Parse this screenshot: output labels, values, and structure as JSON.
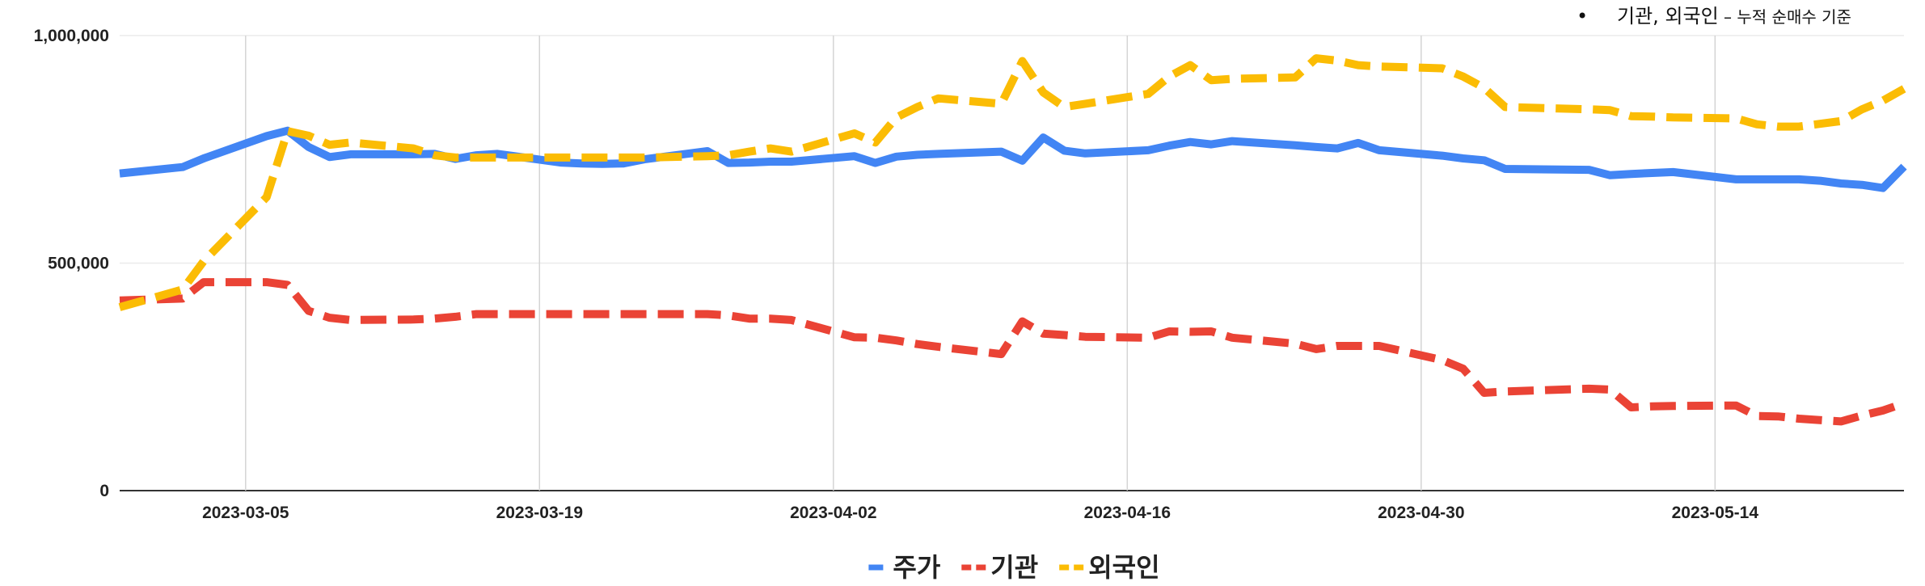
{
  "annotation": {
    "bullet": "•",
    "main": "기관, 외국인",
    "rest": " – 누적 순매수 기준"
  },
  "chart_data": {
    "type": "line",
    "title": "",
    "xlabel": "",
    "ylabel": "",
    "ylim": [
      0,
      1000000
    ],
    "xlim": [
      "2023-02-27",
      "2023-05-23"
    ],
    "y_ticks": [
      0,
      500000,
      1000000
    ],
    "y_tick_labels": [
      "0",
      "500,000",
      "1,000,000"
    ],
    "x_ticks": [
      "2023-03-05",
      "2023-03-19",
      "2023-04-02",
      "2023-04-16",
      "2023-04-30",
      "2023-05-14"
    ],
    "grid": true,
    "legend_position": "bottom",
    "series": [
      {
        "name": "주가",
        "color": "#4285F4",
        "style": "solid",
        "points": [
          [
            "2023-02-27",
            697000
          ],
          [
            "2023-03-02",
            711000
          ],
          [
            "2023-03-03",
            730000
          ],
          [
            "2023-03-06",
            779000
          ],
          [
            "2023-03-07",
            791000
          ],
          [
            "2023-03-08",
            755000
          ],
          [
            "2023-03-09",
            733000
          ],
          [
            "2023-03-10",
            739000
          ],
          [
            "2023-03-13",
            739000
          ],
          [
            "2023-03-14",
            740000
          ],
          [
            "2023-03-15",
            729000
          ],
          [
            "2023-03-16",
            737000
          ],
          [
            "2023-03-17",
            740000
          ],
          [
            "2023-03-20",
            721000
          ],
          [
            "2023-03-21",
            719000
          ],
          [
            "2023-03-22",
            718000
          ],
          [
            "2023-03-23",
            719000
          ],
          [
            "2023-03-24",
            728000
          ],
          [
            "2023-03-27",
            746000
          ],
          [
            "2023-03-28",
            720000
          ],
          [
            "2023-03-29",
            721000
          ],
          [
            "2023-03-30",
            723000
          ],
          [
            "2023-03-31",
            723000
          ],
          [
            "2023-04-03",
            735000
          ],
          [
            "2023-04-04",
            720000
          ],
          [
            "2023-04-05",
            734000
          ],
          [
            "2023-04-06",
            738000
          ],
          [
            "2023-04-07",
            740000
          ],
          [
            "2023-04-10",
            745000
          ],
          [
            "2023-04-11",
            725000
          ],
          [
            "2023-04-12",
            776000
          ],
          [
            "2023-04-13",
            747000
          ],
          [
            "2023-04-14",
            741000
          ],
          [
            "2023-04-17",
            748000
          ],
          [
            "2023-04-18",
            758000
          ],
          [
            "2023-04-19",
            766000
          ],
          [
            "2023-04-20",
            761000
          ],
          [
            "2023-04-21",
            768000
          ],
          [
            "2023-04-24",
            759000
          ],
          [
            "2023-04-25",
            755000
          ],
          [
            "2023-04-26",
            752000
          ],
          [
            "2023-04-27",
            764000
          ],
          [
            "2023-04-28",
            748000
          ],
          [
            "2023-05-01",
            736000
          ],
          [
            "2023-05-02",
            730000
          ],
          [
            "2023-05-03",
            726000
          ],
          [
            "2023-05-04",
            707000
          ],
          [
            "2023-05-08",
            705000
          ],
          [
            "2023-05-09",
            693000
          ],
          [
            "2023-05-10",
            696000
          ],
          [
            "2023-05-11",
            698000
          ],
          [
            "2023-05-12",
            700000
          ],
          [
            "2023-05-15",
            684000
          ],
          [
            "2023-05-16",
            684000
          ],
          [
            "2023-05-17",
            684000
          ],
          [
            "2023-05-18",
            684000
          ],
          [
            "2023-05-19",
            681000
          ],
          [
            "2023-05-20",
            675000
          ],
          [
            "2023-05-21",
            672000
          ],
          [
            "2023-05-22",
            665000
          ],
          [
            "2023-05-23",
            712000
          ]
        ]
      },
      {
        "name": "기관",
        "color": "#EA4335",
        "style": "dashed",
        "points": [
          [
            "2023-02-27",
            418000
          ],
          [
            "2023-03-02",
            422000
          ],
          [
            "2023-03-03",
            458000
          ],
          [
            "2023-03-06",
            458000
          ],
          [
            "2023-03-07",
            452000
          ],
          [
            "2023-03-08",
            395000
          ],
          [
            "2023-03-09",
            380000
          ],
          [
            "2023-03-10",
            375000
          ],
          [
            "2023-03-13",
            376000
          ],
          [
            "2023-03-14",
            378000
          ],
          [
            "2023-03-15",
            382000
          ],
          [
            "2023-03-16",
            388000
          ],
          [
            "2023-03-17",
            388000
          ],
          [
            "2023-03-20",
            388000
          ],
          [
            "2023-03-21",
            388000
          ],
          [
            "2023-03-22",
            388000
          ],
          [
            "2023-03-23",
            388000
          ],
          [
            "2023-03-24",
            388000
          ],
          [
            "2023-03-27",
            388000
          ],
          [
            "2023-03-28",
            385000
          ],
          [
            "2023-03-29",
            378000
          ],
          [
            "2023-03-30",
            378000
          ],
          [
            "2023-03-31",
            375000
          ],
          [
            "2023-04-03",
            337000
          ],
          [
            "2023-04-04",
            336000
          ],
          [
            "2023-04-05",
            330000
          ],
          [
            "2023-04-06",
            322000
          ],
          [
            "2023-04-07",
            316000
          ],
          [
            "2023-04-10",
            300000
          ],
          [
            "2023-04-11",
            372000
          ],
          [
            "2023-04-12",
            345000
          ],
          [
            "2023-04-13",
            342000
          ],
          [
            "2023-04-14",
            338000
          ],
          [
            "2023-04-17",
            336000
          ],
          [
            "2023-04-18",
            350000
          ],
          [
            "2023-04-19",
            349000
          ],
          [
            "2023-04-20",
            350000
          ],
          [
            "2023-04-21",
            336000
          ],
          [
            "2023-04-24",
            323000
          ],
          [
            "2023-04-25",
            311000
          ],
          [
            "2023-04-26",
            318000
          ],
          [
            "2023-04-27",
            318000
          ],
          [
            "2023-04-28",
            318000
          ],
          [
            "2023-05-01",
            287000
          ],
          [
            "2023-05-02",
            268000
          ],
          [
            "2023-05-03",
            215000
          ],
          [
            "2023-05-04",
            218000
          ],
          [
            "2023-05-08",
            224000
          ],
          [
            "2023-05-09",
            222000
          ],
          [
            "2023-05-10",
            183000
          ],
          [
            "2023-05-11",
            185000
          ],
          [
            "2023-05-12",
            186000
          ],
          [
            "2023-05-15",
            187000
          ],
          [
            "2023-05-16",
            164000
          ],
          [
            "2023-05-17",
            163000
          ],
          [
            "2023-05-18",
            158000
          ],
          [
            "2023-05-19",
            155000
          ],
          [
            "2023-05-20",
            152000
          ],
          [
            "2023-05-21",
            165000
          ],
          [
            "2023-05-22",
            176000
          ],
          [
            "2023-05-23",
            192000
          ]
        ]
      },
      {
        "name": "외국인",
        "color": "#FBBC04",
        "style": "dashed",
        "points": [
          [
            "2023-02-27",
            403000
          ],
          [
            "2023-03-02",
            442000
          ],
          [
            "2023-03-03",
            504000
          ],
          [
            "2023-03-06",
            645000
          ],
          [
            "2023-03-07",
            790000
          ],
          [
            "2023-03-08",
            780000
          ],
          [
            "2023-03-09",
            760000
          ],
          [
            "2023-03-10",
            765000
          ],
          [
            "2023-03-13",
            752000
          ],
          [
            "2023-03-14",
            737000
          ],
          [
            "2023-03-15",
            732000
          ],
          [
            "2023-03-16",
            732000
          ],
          [
            "2023-03-17",
            732000
          ],
          [
            "2023-03-20",
            732000
          ],
          [
            "2023-03-21",
            732000
          ],
          [
            "2023-03-22",
            732000
          ],
          [
            "2023-03-23",
            732000
          ],
          [
            "2023-03-24",
            732000
          ],
          [
            "2023-03-27",
            735000
          ],
          [
            "2023-03-28",
            737000
          ],
          [
            "2023-03-29",
            745000
          ],
          [
            "2023-03-30",
            752000
          ],
          [
            "2023-03-31",
            745000
          ],
          [
            "2023-04-03",
            785000
          ],
          [
            "2023-04-04",
            765000
          ],
          [
            "2023-04-05",
            820000
          ],
          [
            "2023-04-06",
            843000
          ],
          [
            "2023-04-07",
            862000
          ],
          [
            "2023-04-10",
            850000
          ],
          [
            "2023-04-11",
            944000
          ],
          [
            "2023-04-12",
            875000
          ],
          [
            "2023-04-13",
            843000
          ],
          [
            "2023-04-14",
            850000
          ],
          [
            "2023-04-17",
            872000
          ],
          [
            "2023-04-18",
            910000
          ],
          [
            "2023-04-19",
            935000
          ],
          [
            "2023-04-20",
            902000
          ],
          [
            "2023-04-21",
            905000
          ],
          [
            "2023-04-24",
            908000
          ],
          [
            "2023-04-25",
            950000
          ],
          [
            "2023-04-26",
            945000
          ],
          [
            "2023-04-27",
            935000
          ],
          [
            "2023-04-28",
            932000
          ],
          [
            "2023-05-01",
            928000
          ],
          [
            "2023-05-02",
            910000
          ],
          [
            "2023-05-03",
            885000
          ],
          [
            "2023-05-04",
            843000
          ],
          [
            "2023-05-08",
            838000
          ],
          [
            "2023-05-09",
            836000
          ],
          [
            "2023-05-10",
            823000
          ],
          [
            "2023-05-11",
            822000
          ],
          [
            "2023-05-12",
            820000
          ],
          [
            "2023-05-15",
            818000
          ],
          [
            "2023-05-16",
            805000
          ],
          [
            "2023-05-17",
            800000
          ],
          [
            "2023-05-18",
            800000
          ],
          [
            "2023-05-19",
            806000
          ],
          [
            "2023-05-20",
            812000
          ],
          [
            "2023-05-21",
            838000
          ],
          [
            "2023-05-22",
            857000
          ],
          [
            "2023-05-23",
            883000
          ]
        ]
      }
    ]
  }
}
